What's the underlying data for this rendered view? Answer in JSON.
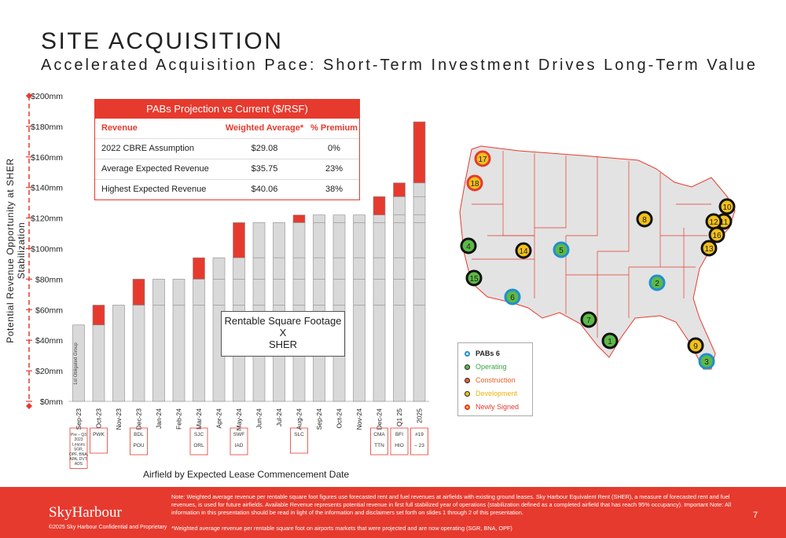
{
  "header": {
    "title": "SITE ACQUISITION",
    "subtitle": "Accelerated Acquisition Pace: Short-Term Investment Drives Long-Term Value"
  },
  "chart_data": {
    "type": "bar",
    "title": "",
    "ylabel": "Potential Revenue Opportunity at SHER Stabilization",
    "xlabel": "Airfield by Expected Lease Commencement Date",
    "ylim": [
      0,
      200
    ],
    "y_ticks": [
      "$0mm",
      "$20mm",
      "$40mm",
      "$60mm",
      "$80mm",
      "$100mm",
      "$120mm",
      "$140mm",
      "$160mm",
      "$180mm",
      "$200mm"
    ],
    "categories": [
      "Sep-23",
      "Oct-23",
      "Nov-23",
      "Dec-23",
      "Jan-24",
      "Feb-24",
      "Mar-24",
      "Apr-24",
      "May-24",
      "Jun-24",
      "Jul-24",
      "Aug-24",
      "Sep-24",
      "Oct-24",
      "Nov-24",
      "Dec-24",
      "Q1 25",
      "2025"
    ],
    "series": [
      {
        "values": [
          50,
          50,
          63,
          63,
          80,
          80,
          80,
          94,
          94,
          117,
          117,
          117,
          122,
          122,
          122,
          122,
          134,
          143
        ]
      },
      {
        "values": [
          0,
          13,
          0,
          17,
          0,
          0,
          14,
          0,
          23,
          0,
          0,
          5,
          0,
          0,
          0,
          12,
          9,
          40
        ]
      }
    ],
    "segment_breaks": [
      [],
      [],
      [],
      [],
      [
        63
      ],
      [
        63
      ],
      [
        63
      ],
      [
        63,
        80
      ],
      [
        63,
        80
      ],
      [
        63,
        80,
        94
      ],
      [
        63,
        80,
        94
      ],
      [
        63,
        80,
        94
      ],
      [
        63,
        80,
        94,
        117
      ],
      [
        63,
        80,
        94,
        117
      ],
      [
        63,
        80,
        94,
        117
      ],
      [
        63,
        80,
        94,
        117
      ],
      [
        63,
        80,
        94,
        117,
        122
      ],
      [
        63,
        80,
        94,
        117,
        122,
        134
      ]
    ],
    "airfield_labels": [
      {
        "col": 0,
        "lines": [
          "Pre – Q3",
          "2023",
          "Leases",
          "SGR,",
          "OPF, BNA,",
          "APA, DVT,",
          "ADS"
        ]
      },
      {
        "col": 1,
        "lines": [
          "PWK"
        ]
      },
      {
        "col": 3,
        "lines": [
          "BDL",
          "POU"
        ]
      },
      {
        "col": 6,
        "lines": [
          "SJC",
          "ORL"
        ]
      },
      {
        "col": 8,
        "lines": [
          "SWF",
          "IAD"
        ]
      },
      {
        "col": 11,
        "lines": [
          "SLC"
        ]
      },
      {
        "col": 15,
        "lines": [
          "CMA",
          "TTN"
        ]
      },
      {
        "col": 16,
        "lines": [
          "BFI",
          "HIO"
        ]
      },
      {
        "col": 17,
        "lines": [
          "#19",
          "– 23"
        ]
      }
    ],
    "first_bar_label": "1st Obligated Group",
    "colors": {
      "base": "#d9d9d9",
      "increment": "#e63a2e",
      "border": "#8c8c8c"
    }
  },
  "projection_table": {
    "title": "PABs Projection vs Current ($/RSF)",
    "headers": [
      "Revenue",
      "Weighted Average*",
      "% Premium"
    ],
    "rows": [
      [
        "2022 CBRE Assumption",
        "$29.08",
        "0%"
      ],
      [
        "Average Expected Revenue",
        "$35.75",
        "23%"
      ],
      [
        "Highest Expected Revenue",
        "$40.06",
        "38%"
      ]
    ]
  },
  "rentable_box": {
    "line1": "Rentable Square Footage",
    "line2": "X",
    "line3": "SHER"
  },
  "map": {
    "markers": [
      {
        "n": "17",
        "status": "newly-signed"
      },
      {
        "n": "18",
        "status": "newly-signed"
      },
      {
        "n": "4",
        "status": "operating"
      },
      {
        "n": "15",
        "status": "operating"
      },
      {
        "n": "14",
        "status": "development"
      },
      {
        "n": "5",
        "status": "pabs"
      },
      {
        "n": "6",
        "status": "pabs"
      },
      {
        "n": "7",
        "status": "operating"
      },
      {
        "n": "1",
        "status": "operating"
      },
      {
        "n": "8",
        "status": "development"
      },
      {
        "n": "2",
        "status": "pabs"
      },
      {
        "n": "9",
        "status": "development"
      },
      {
        "n": "3",
        "status": "pabs"
      },
      {
        "n": "10",
        "status": "development"
      },
      {
        "n": "11",
        "status": "development"
      },
      {
        "n": "12",
        "status": "development"
      },
      {
        "n": "16",
        "status": "development"
      },
      {
        "n": "13",
        "status": "development"
      }
    ],
    "legend": [
      {
        "label": "PABs 6",
        "color": "#1f8fd0",
        "text_color": "#222",
        "bold": true
      },
      {
        "label": "Operating",
        "color": "#5cb947",
        "text_color": "#3aa648",
        "bold": false
      },
      {
        "label": "Construction",
        "color": "#e8602c",
        "text_color": "#e8602c",
        "bold": false
      },
      {
        "label": "Development",
        "color": "#f2c01b",
        "text_color": "#e8b410",
        "bold": false
      },
      {
        "label": "Newly Signed",
        "color": "#e63a2e",
        "text_color": "#e63a2e",
        "bold": false
      }
    ],
    "colors": {
      "pabs": "#1f8fd0",
      "operating": "#5cb947",
      "development": "#f2c01b",
      "newly-signed": "#e63a2e",
      "land": "#e3e3e3",
      "border": "#e63a2e"
    }
  },
  "footer": {
    "logo": "SkyHarbour",
    "copyright": "©2025 Sky Harbour Confidential and Proprietary",
    "note": "Note: Weighted average revenue per rentable square foot figures use forecasted rent and fuel revenues at airfields with existing ground leases. Sky Harbour Equivalent Rent (SHER), a measure of forecasted rent and fuel revenues, is used for future airfields. Available Revenue represents potential revenue in first full stabilized year of operations (stabilization defined as a completed airfield that has reach 95% occupancy). Important Note: All information in this presentation should be read in light of the information and disclaimers set forth on slides 1 through 2 of this presentation.",
    "footnote": "*Weighted average revenue per rentable square foot on airports markets that were projected and are now operating (SGR, BNA, OPF)",
    "page": "7"
  }
}
